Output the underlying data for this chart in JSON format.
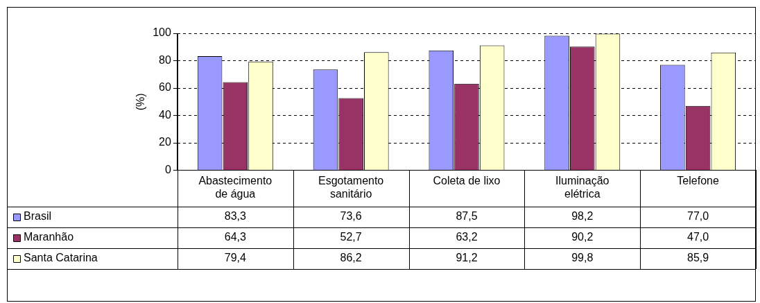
{
  "chart_data": {
    "type": "bar",
    "ylabel": "(%)",
    "categories": [
      "Abastecimento de água",
      "Esgotamento sanitário",
      "Coleta de lixo",
      "Iluminação elétrica",
      "Telefone"
    ],
    "series": [
      {
        "name": "Brasil",
        "color": "#9999ff",
        "values": [
          83.3,
          73.6,
          87.5,
          98.2,
          77.0
        ],
        "value_labels": [
          "83,3",
          "73,6",
          "87,5",
          "98,2",
          "77,0"
        ]
      },
      {
        "name": "Maranhão",
        "color": "#993366",
        "values": [
          64.3,
          52.7,
          63.2,
          90.2,
          47.0
        ],
        "value_labels": [
          "64,3",
          "52,7",
          "63,2",
          "90,2",
          "47,0"
        ]
      },
      {
        "name": "Santa Catarina",
        "color": "#ffffcc",
        "values": [
          79.4,
          86.2,
          91.2,
          99.8,
          85.9
        ],
        "value_labels": [
          "79,4",
          "86,2",
          "91,2",
          "99,8",
          "85,9"
        ]
      }
    ],
    "ylim": [
      0,
      100
    ],
    "yticks": [
      0,
      20,
      40,
      60,
      80,
      100
    ],
    "grid": "y",
    "legend": "bottom"
  }
}
